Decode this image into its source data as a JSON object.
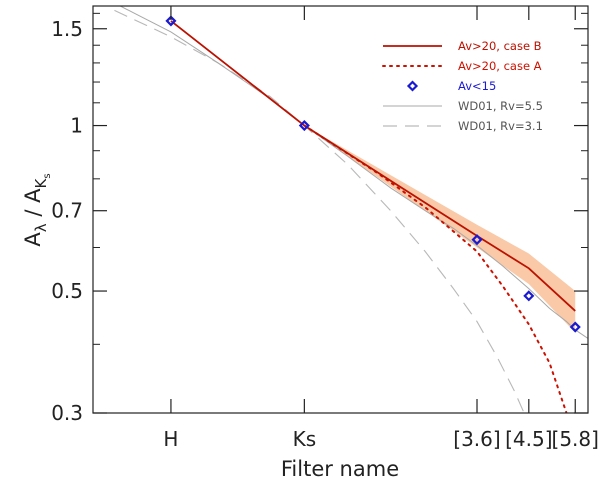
{
  "chart_data": {
    "type": "line",
    "xlabel": "Filter name",
    "ylabel_main": "A",
    "ylabel_sub": "λ",
    "ylabel_sep": " / A",
    "ylabel_sub2": "K",
    "ylabel_sub3": "s",
    "yscale": "log",
    "ylim": [
      0.3,
      1.65
    ],
    "yticks": [
      {
        "value": 0.3,
        "label": "0.3"
      },
      {
        "value": 0.5,
        "label": "0.5"
      },
      {
        "value": 0.7,
        "label": "0.7"
      },
      {
        "value": 1.0,
        "label": "1"
      },
      {
        "value": 1.5,
        "label": "1.5"
      }
    ],
    "yminor": [
      0.4,
      0.6,
      0.8,
      0.9,
      1.1,
      1.2,
      1.3,
      1.4,
      1.6
    ],
    "xlim_um": [
      1.45,
      6.3
    ],
    "xscale": "inverse-wavelength",
    "xticks": [
      {
        "label": "H",
        "wavelength_um": 1.65
      },
      {
        "label": "Ks",
        "wavelength_um": 2.16
      },
      {
        "label": "[3.6]",
        "wavelength_um": 3.6
      },
      {
        "label": "[4.5]",
        "wavelength_um": 4.5
      },
      {
        "label": "[5.8]",
        "wavelength_um": 5.8
      }
    ],
    "band": {
      "name": "Av>20, case B uncertainty",
      "color": "#f9c9a8",
      "wavelength_um": [
        2.16,
        3.6,
        4.5,
        5.8
      ],
      "lower": [
        1.0,
        0.6,
        0.515,
        0.42
      ],
      "upper": [
        1.0,
        0.66,
        0.585,
        0.5
      ]
    },
    "series": [
      {
        "name": "WD01, Rv=3.1",
        "style": "dashed",
        "color": "#b8b8b8",
        "wavelength_um": [
          1.5,
          1.65,
          1.8,
          2.0,
          2.16,
          2.4,
          2.7,
          3.0,
          3.3,
          3.6,
          3.9,
          4.2,
          4.4
        ],
        "values": [
          1.62,
          1.45,
          1.3,
          1.13,
          1.0,
          0.85,
          0.7,
          0.59,
          0.505,
          0.44,
          0.38,
          0.33,
          0.3
        ]
      },
      {
        "name": "WD01, Rv=5.5",
        "style": "solid-thin",
        "color": "#a8a8a8",
        "wavelength_um": [
          1.45,
          1.55,
          1.65,
          1.8,
          2.0,
          2.16,
          2.4,
          2.7,
          3.0,
          3.3,
          3.6,
          4.0,
          4.5,
          5.0,
          5.5,
          5.8,
          6.3
        ],
        "values": [
          1.75,
          1.6,
          1.48,
          1.3,
          1.12,
          1.0,
          0.88,
          0.77,
          0.7,
          0.65,
          0.605,
          0.555,
          0.505,
          0.465,
          0.44,
          0.425,
          0.41
        ]
      },
      {
        "name": "Av>20, case A",
        "style": "dotted",
        "color": "#cc1100",
        "wavelength_um": [
          2.16,
          2.6,
          3.0,
          3.6,
          4.0,
          4.5,
          5.0,
          5.5
        ],
        "values": [
          1.0,
          0.82,
          0.71,
          0.59,
          0.51,
          0.435,
          0.37,
          0.3
        ]
      },
      {
        "name": "Av>20, case B",
        "style": "solid",
        "color": "#bb1100",
        "wavelength_um": [
          1.65,
          2.16,
          3.6,
          4.5,
          5.8
        ],
        "values": [
          1.55,
          1.0,
          0.63,
          0.55,
          0.46
        ]
      },
      {
        "name": "Av<15",
        "style": "marker",
        "color": "#1a1ad0",
        "wavelength_um": [
          1.65,
          2.16,
          3.6,
          4.5,
          5.8
        ],
        "values": [
          1.55,
          1.0,
          0.62,
          0.49,
          0.43
        ]
      }
    ],
    "legend": {
      "placement": "top-right",
      "entries": [
        {
          "label": "Av>20, case B",
          "style": "solid",
          "color": "#bb1100"
        },
        {
          "label": "Av>20, case A",
          "style": "dotted",
          "color": "#cc1100"
        },
        {
          "label": "Av<15",
          "style": "marker",
          "color": "#1a1ad0"
        },
        {
          "label": "WD01, Rv=5.5",
          "style": "solid-thin",
          "color": "#a8a8a8"
        },
        {
          "label": "WD01, Rv=3.1",
          "style": "dashed",
          "color": "#a8a8a8"
        }
      ]
    }
  }
}
